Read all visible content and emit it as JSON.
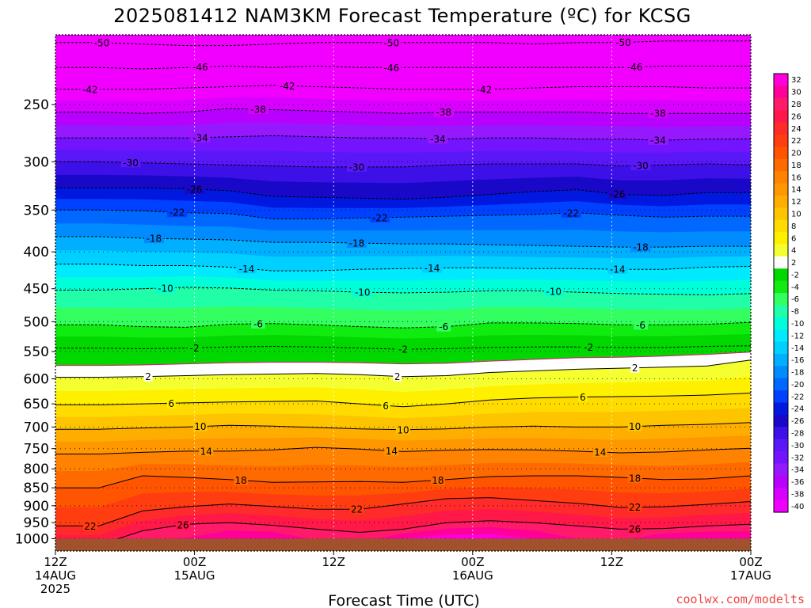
{
  "chart_data": {
    "type": "heatmap",
    "title": "2025081412 NAM3KM Forecast Temperature (ºC) for KCSG",
    "xlabel": "Forecast Time (UTC)",
    "ylabel": "",
    "x_ticks": [
      {
        "hour": 0,
        "line1": "12Z",
        "line2": "14AUG",
        "line3": "2025"
      },
      {
        "hour": 12,
        "line1": "00Z",
        "line2": "15AUG",
        "line3": ""
      },
      {
        "hour": 24,
        "line1": "12Z",
        "line2": "",
        "line3": ""
      },
      {
        "hour": 36,
        "line1": "00Z",
        "line2": "16AUG",
        "line3": ""
      },
      {
        "hour": 48,
        "line1": "12Z",
        "line2": "",
        "line3": ""
      },
      {
        "hour": 60,
        "line1": "00Z",
        "line2": "17AUG",
        "line3": ""
      }
    ],
    "xlim_hours": [
      0,
      60
    ],
    "y_axis": {
      "unit": "hPa",
      "scale": "log",
      "reversed": true,
      "ylim": [
        1040,
        200
      ],
      "ticks": [
        250,
        300,
        350,
        400,
        450,
        500,
        550,
        600,
        650,
        700,
        750,
        800,
        850,
        900,
        950,
        1000
      ]
    },
    "ground_level_hPa": 1000,
    "colorbar": {
      "levels": [
        32,
        30,
        28,
        26,
        24,
        22,
        20,
        18,
        16,
        14,
        12,
        10,
        8,
        6,
        4,
        2,
        -2,
        -4,
        -6,
        -8,
        -10,
        -12,
        -14,
        -16,
        -18,
        -20,
        -22,
        -24,
        -26,
        -28,
        -30,
        -32,
        -34,
        -36,
        -38,
        -40
      ],
      "colors": [
        "#ff00dd",
        "#ff0099",
        "#ff1a6a",
        "#ff1848",
        "#ff2a2a",
        "#ff3d10",
        "#ff5400",
        "#ff6a00",
        "#ff8200",
        "#ff9700",
        "#ffae00",
        "#ffc400",
        "#ffdb00",
        "#fff000",
        "#f5ff30",
        "#ffffff",
        "#00d800",
        "#10ec10",
        "#34ff60",
        "#20ffa8",
        "#00ffd8",
        "#00eaff",
        "#00d0ff",
        "#00b0ff",
        "#008cff",
        "#0068ff",
        "#0040ff",
        "#0018e0",
        "#1a08c8",
        "#3e10e8",
        "#5a18f8",
        "#7414ff",
        "#9618ff",
        "#b800ff",
        "#d800ff",
        "#f200ff"
      ]
    },
    "series": [
      {
        "temp": -50,
        "p": [
          205,
          205,
          206,
          207,
          207,
          206,
          205,
          205,
          205,
          205,
          205,
          206,
          205,
          205,
          204,
          204,
          204
        ]
      },
      {
        "temp": -46,
        "p": [
          222,
          222,
          223,
          222,
          221,
          222,
          221,
          222,
          222,
          222,
          222,
          222,
          222,
          222,
          221,
          221,
          221
        ]
      },
      {
        "temp": -42,
        "p": [
          238,
          238,
          238,
          237,
          236,
          235,
          236,
          237,
          238,
          238,
          238,
          237,
          236,
          236,
          236,
          237,
          237
        ]
      },
      {
        "temp": -38,
        "p": [
          256,
          256,
          257,
          256,
          253,
          254,
          255,
          256,
          257,
          256,
          256,
          256,
          256,
          257,
          257,
          257,
          257
        ]
      },
      {
        "temp": -34,
        "p": [
          278,
          278,
          278,
          278,
          277,
          276,
          277,
          278,
          278,
          279,
          278,
          278,
          279,
          279,
          280,
          279,
          279
        ]
      },
      {
        "temp": -30,
        "p": [
          300,
          300,
          301,
          302,
          303,
          304,
          305,
          305,
          305,
          303,
          302,
          302,
          302,
          304,
          303,
          302,
          303
        ]
      },
      {
        "temp": -26,
        "p": [
          326,
          326,
          326,
          327,
          329,
          335,
          336,
          337,
          338,
          336,
          333,
          330,
          328,
          333,
          334,
          331,
          331
        ]
      },
      {
        "temp": -22,
        "p": [
          350,
          350,
          351,
          353,
          354,
          360,
          360,
          359,
          358,
          357,
          356,
          355,
          353,
          356,
          358,
          357,
          357
        ]
      },
      {
        "temp": -18,
        "p": [
          381,
          381,
          383,
          384,
          385,
          388,
          388,
          389,
          390,
          390,
          391,
          392,
          393,
          394,
          394,
          393,
          393
        ]
      },
      {
        "temp": -14,
        "p": [
          416,
          416,
          418,
          418,
          420,
          425,
          425,
          423,
          422,
          421,
          421,
          422,
          422,
          423,
          423,
          420,
          419
        ]
      },
      {
        "temp": -10,
        "p": [
          452,
          452,
          450,
          448,
          449,
          452,
          453,
          455,
          456,
          455,
          453,
          453,
          455,
          457,
          458,
          459,
          457
        ]
      },
      {
        "temp": -6,
        "p": [
          505,
          505,
          508,
          509,
          504,
          503,
          505,
          508,
          510,
          508,
          502,
          502,
          503,
          505,
          505,
          504,
          501
        ]
      },
      {
        "temp": -2,
        "p": [
          544,
          544,
          545,
          544,
          542,
          541,
          542,
          544,
          546,
          545,
          543,
          542,
          542,
          543,
          543,
          541,
          540
        ]
      },
      {
        "temp": 0,
        "p": [
          575,
          575,
          574,
          572,
          570,
          569,
          569,
          570,
          572,
          571,
          567,
          564,
          561,
          560,
          558,
          555,
          551
        ]
      },
      {
        "temp": 2,
        "p": [
          597,
          597,
          596,
          594,
          592,
          591,
          590,
          592,
          596,
          594,
          588,
          585,
          582,
          580,
          578,
          576,
          565
        ]
      },
      {
        "temp": 6,
        "p": [
          652,
          652,
          650,
          648,
          646,
          645,
          644,
          650,
          656,
          650,
          642,
          638,
          636,
          635,
          634,
          632,
          628
        ]
      },
      {
        "temp": 10,
        "p": [
          705,
          705,
          702,
          700,
          696,
          698,
          701,
          704,
          706,
          704,
          700,
          698,
          700,
          700,
          696,
          694,
          690
        ]
      },
      {
        "temp": 14,
        "p": [
          763,
          763,
          759,
          756,
          756,
          753,
          747,
          751,
          757,
          754,
          752,
          753,
          756,
          760,
          758,
          753,
          749
        ]
      },
      {
        "temp": 18,
        "p": [
          850,
          850,
          818,
          822,
          828,
          835,
          834,
          833,
          835,
          828,
          820,
          818,
          818,
          822,
          828,
          826,
          818
        ]
      },
      {
        "temp": 22,
        "p": [
          960,
          960,
          915,
          903,
          895,
          902,
          910,
          910,
          895,
          880,
          877,
          885,
          893,
          905,
          903,
          896,
          888
        ]
      },
      {
        "temp": 26,
        "p": [
          1020,
          1020,
          975,
          955,
          950,
          958,
          970,
          980,
          970,
          950,
          944,
          950,
          960,
          970,
          968,
          960,
          955
        ]
      },
      {
        "temp": 30,
        "p": [
          1040,
          1040,
          1040,
          1040,
          1000,
          1000,
          1040,
          1040,
          1000,
          988,
          985,
          1000,
          1040,
          1040,
          1000,
          998,
          1000
        ]
      }
    ],
    "contour_labels": [
      {
        "temp": -50,
        "hours": [
          4,
          29,
          49
        ]
      },
      {
        "temp": -46,
        "hours": [
          12.5,
          29,
          50
        ]
      },
      {
        "temp": -42,
        "hours": [
          3,
          20,
          37
        ]
      },
      {
        "temp": -38,
        "hours": [
          17.5,
          33.5,
          52
        ]
      },
      {
        "temp": -34,
        "hours": [
          12.5,
          33,
          52
        ]
      },
      {
        "temp": -30,
        "hours": [
          6.5,
          26,
          50.5
        ]
      },
      {
        "temp": -26,
        "hours": [
          12,
          48.5
        ]
      },
      {
        "temp": -22,
        "hours": [
          10.5,
          28,
          44.5
        ]
      },
      {
        "temp": -18,
        "hours": [
          8.5,
          26,
          50.5
        ]
      },
      {
        "temp": -14,
        "hours": [
          16.5,
          32.5,
          48.5
        ]
      },
      {
        "temp": -10,
        "hours": [
          9.5,
          26.5,
          43
        ]
      },
      {
        "temp": -6,
        "hours": [
          17.5,
          33.5,
          50.5
        ]
      },
      {
        "temp": -2,
        "hours": [
          12,
          30,
          46
        ]
      },
      {
        "temp": 2,
        "hours": [
          8,
          29.5,
          50
        ]
      },
      {
        "temp": 6,
        "hours": [
          10,
          28.5,
          45.5
        ]
      },
      {
        "temp": 10,
        "hours": [
          12.5,
          30,
          50
        ]
      },
      {
        "temp": 14,
        "hours": [
          13,
          29,
          47
        ]
      },
      {
        "temp": 18,
        "hours": [
          16,
          33,
          50
        ]
      },
      {
        "temp": 22,
        "hours": [
          26,
          50
        ]
      },
      {
        "temp": 26,
        "hours": [
          11,
          50
        ]
      },
      {
        "temp": 22,
        "hours": [
          3
        ]
      }
    ],
    "styles": {
      "contour_color": "#000000",
      "freezing_line_color": "#e0106a",
      "ground_color": "#a0522d",
      "grid": true
    }
  },
  "footer": {
    "credit": "coolwx.com/modelts"
  }
}
